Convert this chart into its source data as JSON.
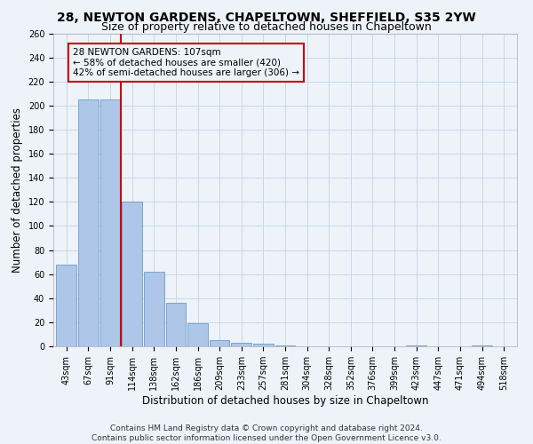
{
  "title": "28, NEWTON GARDENS, CHAPELTOWN, SHEFFIELD, S35 2YW",
  "subtitle": "Size of property relative to detached houses in Chapeltown",
  "xlabel": "Distribution of detached houses by size in Chapeltown",
  "ylabel": "Number of detached properties",
  "categories": [
    "43sqm",
    "67sqm",
    "91sqm",
    "114sqm",
    "138sqm",
    "162sqm",
    "186sqm",
    "209sqm",
    "233sqm",
    "257sqm",
    "281sqm",
    "304sqm",
    "328sqm",
    "352sqm",
    "376sqm",
    "399sqm",
    "423sqm",
    "447sqm",
    "471sqm",
    "494sqm",
    "518sqm"
  ],
  "values": [
    68,
    205,
    205,
    120,
    62,
    36,
    19,
    5,
    3,
    2,
    1,
    0,
    0,
    0,
    0,
    0,
    1,
    0,
    0,
    1,
    0
  ],
  "bar_color": "#aec6e8",
  "bar_edge_color": "#5a8fc2",
  "grid_color": "#c8d8e8",
  "background_color": "#eef3f9",
  "vline_color": "#cc0000",
  "annotation_line1": "28 NEWTON GARDENS: 107sqm",
  "annotation_line2": "← 58% of detached houses are smaller (420)",
  "annotation_line3": "42% of semi-detached houses are larger (306) →",
  "annotation_box_color": "#cc0000",
  "ylim": [
    0,
    260
  ],
  "yticks": [
    0,
    20,
    40,
    60,
    80,
    100,
    120,
    140,
    160,
    180,
    200,
    220,
    240,
    260
  ],
  "footer": "Contains HM Land Registry data © Crown copyright and database right 2024.\nContains public sector information licensed under the Open Government Licence v3.0.",
  "title_fontsize": 10,
  "subtitle_fontsize": 9,
  "xlabel_fontsize": 8.5,
  "ylabel_fontsize": 8.5,
  "tick_fontsize": 7,
  "footer_fontsize": 6.5,
  "annotation_fontsize": 7.5
}
